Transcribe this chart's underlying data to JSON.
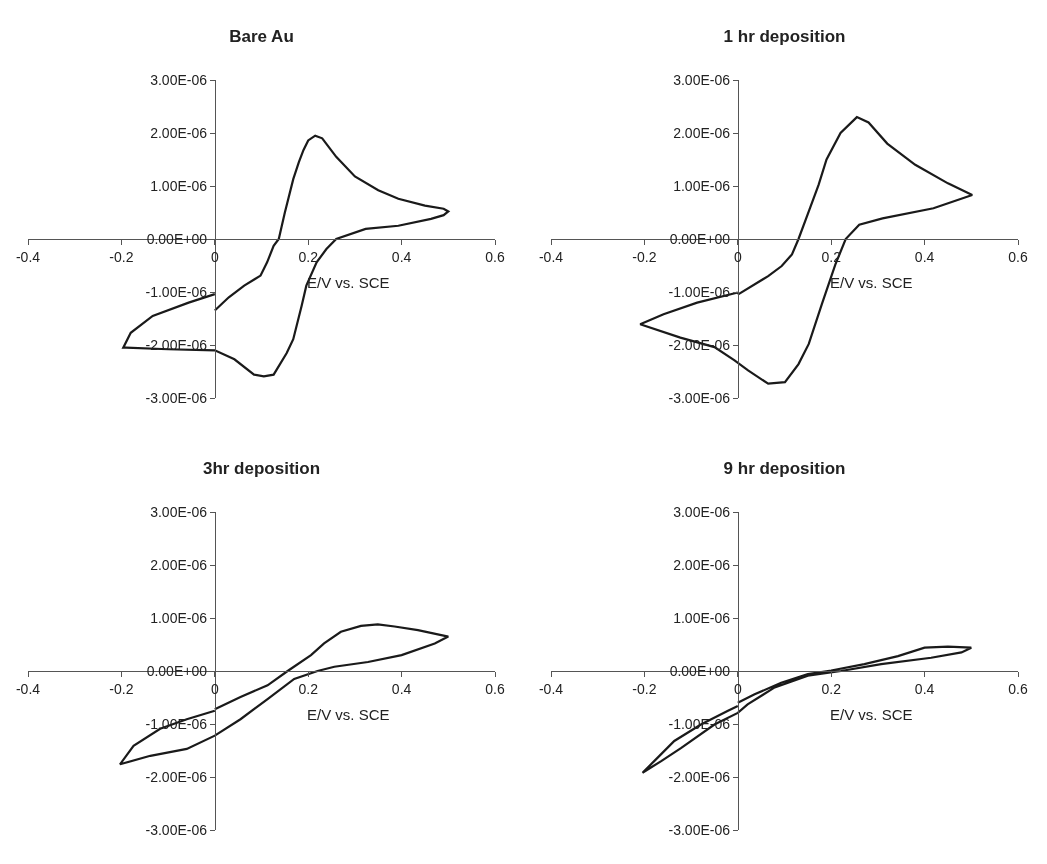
{
  "chart_data": [
    {
      "type": "line",
      "title": "Bare Au",
      "xlabel": "E/V vs. SCE",
      "color": "#1a1a1a",
      "xlim": [
        -0.4,
        0.6
      ],
      "xticks": [
        -0.4,
        -0.2,
        0,
        0.2,
        0.4,
        0.6
      ],
      "ylim": [
        -3e-06,
        3e-06
      ],
      "yticks": [
        {
          "value": -3e-06,
          "label": "-3.00E-06"
        },
        {
          "value": -2e-06,
          "label": "-2.00E-06"
        },
        {
          "value": -1e-06,
          "label": "-1.00E-06"
        },
        {
          "value": 0,
          "label": "0.00E+00"
        },
        {
          "value": 1e-06,
          "label": "1.00E-06"
        },
        {
          "value": 2e-06,
          "label": "2.00E-06"
        },
        {
          "value": 3e-06,
          "label": "3.00E-06"
        }
      ],
      "x": [
        0,
        0.03,
        0.063,
        0.098,
        0.112,
        0.126,
        0.137,
        0.15,
        0.168,
        0.18,
        0.19,
        0.2,
        0.215,
        0.23,
        0.26,
        0.3,
        0.35,
        0.393,
        0.45,
        0.49,
        0.5,
        0.49,
        0.463,
        0.393,
        0.323,
        0.26,
        0.239,
        0.218,
        0.196,
        0.186,
        0.168,
        0.154,
        0.126,
        0.105,
        0.084,
        0.042,
        0,
        -0.1,
        -0.19,
        -0.196,
        -0.18,
        -0.133,
        -0.056,
        0
      ],
      "values": [
        -1.35e-06,
        -1.1e-06,
        -8.8e-07,
        -6.9e-07,
        -4.4e-07,
        -1.3e-07,
        0,
        5e-07,
        1.13e-06,
        1.45e-06,
        1.68e-06,
        1.86e-06,
        1.95e-06,
        1.9e-06,
        1.55e-06,
        1.18e-06,
        9.2e-07,
        7.6e-07,
        6.3e-07,
        5.7e-07,
        5.2e-07,
        4.5e-07,
        3.8e-07,
        2.5e-07,
        1.9e-07,
        0,
        -1.9e-07,
        -4.4e-07,
        -8.8e-07,
        -1.26e-06,
        -1.89e-06,
        -2.15e-06,
        -2.56e-06,
        -2.59e-06,
        -2.56e-06,
        -2.27e-06,
        -2.1e-06,
        -2.08e-06,
        -2.05e-06,
        -2.05e-06,
        -1.77e-06,
        -1.45e-06,
        -1.2e-06,
        -1.04e-06
      ]
    },
    {
      "type": "line",
      "title": "1 hr deposition",
      "xlabel": "E/V vs. SCE",
      "color": "#1a1a1a",
      "xlim": [
        -0.4,
        0.6
      ],
      "xticks": [
        -0.4,
        -0.2,
        0,
        0.2,
        0.4,
        0.6
      ],
      "ylim": [
        -3e-06,
        3e-06
      ],
      "yticks": [
        {
          "value": -3e-06,
          "label": "-3.00E-06"
        },
        {
          "value": -2e-06,
          "label": "-2.00E-06"
        },
        {
          "value": -1e-06,
          "label": "-1.00E-06"
        },
        {
          "value": 0,
          "label": "0.00E+00"
        },
        {
          "value": 1e-06,
          "label": "1.00E-06"
        },
        {
          "value": 2e-06,
          "label": "2.00E-06"
        },
        {
          "value": 3e-06,
          "label": "3.00E-06"
        }
      ],
      "x": [
        0,
        0.065,
        0.094,
        0.116,
        0.13,
        0.152,
        0.173,
        0.19,
        0.22,
        0.255,
        0.28,
        0.32,
        0.38,
        0.45,
        0.502,
        0.419,
        0.31,
        0.26,
        0.231,
        0.209,
        0.18,
        0.152,
        0.13,
        0.101,
        0.065,
        0.022,
        -0.007,
        -0.05,
        -0.123,
        -0.209,
        -0.159,
        -0.087,
        0
      ],
      "values": [
        -1.05e-06,
        -7e-07,
        -5.1e-07,
        -2.9e-07,
        0,
        5.2e-07,
        1.02e-06,
        1.5e-06,
        2e-06,
        2.3e-06,
        2.2e-06,
        1.8e-06,
        1.4e-06,
        1.05e-06,
        8.3e-07,
        5.8e-07,
        3.9e-07,
        2.7e-07,
        0,
        -4.8e-07,
        -1.23e-06,
        -1.98e-06,
        -2.36e-06,
        -2.7e-06,
        -2.73e-06,
        -2.48e-06,
        -2.29e-06,
        -2.04e-06,
        -1.86e-06,
        -1.61e-06,
        -1.42e-06,
        -1.2e-06,
        -1.01e-06
      ]
    },
    {
      "type": "line",
      "title": "3hr deposition",
      "xlabel": "E/V vs. SCE",
      "color": "#1a1a1a",
      "xlim": [
        -0.4,
        0.6
      ],
      "xticks": [
        -0.4,
        -0.2,
        0,
        0.2,
        0.4,
        0.6
      ],
      "ylim": [
        -3e-06,
        3e-06
      ],
      "yticks": [
        {
          "value": -3e-06,
          "label": "-3.00E-06"
        },
        {
          "value": -2e-06,
          "label": "-2.00E-06"
        },
        {
          "value": -1e-06,
          "label": "-1.00E-06"
        },
        {
          "value": 0,
          "label": "0.00E+00"
        },
        {
          "value": 1e-06,
          "label": "1.00E-06"
        },
        {
          "value": 2e-06,
          "label": "2.00E-06"
        },
        {
          "value": 3e-06,
          "label": "3.00E-06"
        }
      ],
      "x": [
        0,
        0.055,
        0.113,
        0.156,
        0.206,
        0.234,
        0.27,
        0.313,
        0.349,
        0.385,
        0.435,
        0.5,
        0.471,
        0.4,
        0.328,
        0.256,
        0.22,
        0.17,
        0.113,
        0.055,
        0,
        -0.06,
        -0.138,
        -0.203,
        -0.174,
        -0.117,
        -0.06,
        0
      ],
      "values": [
        -7.2e-07,
        -4.9e-07,
        -2.7e-07,
        0,
        3e-07,
        5.2e-07,
        7.4e-07,
        8.5e-07,
        8.8e-07,
        8.4e-07,
        7.7e-07,
        6.5e-07,
        5.2e-07,
        3e-07,
        1.7e-07,
        8e-08,
        0,
        -1.5e-07,
        -5.3e-07,
        -9.1e-07,
        -1.22e-06,
        -1.47e-06,
        -1.6e-06,
        -1.76e-06,
        -1.41e-06,
        -1.09e-06,
        -9.1e-07,
        -7.5e-07
      ]
    },
    {
      "type": "line",
      "title": "9 hr deposition",
      "xlabel": "E/V vs. SCE",
      "color": "#1a1a1a",
      "xlim": [
        -0.4,
        0.6
      ],
      "xticks": [
        -0.4,
        -0.2,
        0,
        0.2,
        0.4,
        0.6
      ],
      "ylim": [
        -3e-06,
        3e-06
      ],
      "yticks": [
        {
          "value": -3e-06,
          "label": "-3.00E-06"
        },
        {
          "value": -2e-06,
          "label": "-2.00E-06"
        },
        {
          "value": -1e-06,
          "label": "-1.00E-06"
        },
        {
          "value": 0,
          "label": "0.00E+00"
        },
        {
          "value": 1e-06,
          "label": "1.00E-06"
        },
        {
          "value": 2e-06,
          "label": "2.00E-06"
        },
        {
          "value": 3e-06,
          "label": "3.00E-06"
        }
      ],
      "x": [
        0,
        0.036,
        0.093,
        0.15,
        0.2,
        0.271,
        0.343,
        0.4,
        0.45,
        0.5,
        0.479,
        0.414,
        0.307,
        0.221,
        0.15,
        0.079,
        0.021,
        0,
        -0.05,
        -0.121,
        -0.164,
        -0.204,
        -0.179,
        -0.136,
        -0.079,
        -0.021,
        0
      ],
      "values": [
        -6e-07,
        -4.4e-07,
        -2.2e-07,
        -6e-08,
        1e-08,
        1.3e-07,
        2.8e-07,
        4.4e-07,
        4.6e-07,
        4.4e-07,
        3.5e-07,
        2.5e-07,
        1.3e-07,
        0,
        -9e-08,
        -3.1e-07,
        -6.3e-07,
        -7.9e-07,
        -1.01e-06,
        -1.45e-06,
        -1.7e-06,
        -1.92e-06,
        -1.7e-06,
        -1.32e-06,
        -1.01e-06,
        -7.5e-07,
        -6.6e-07
      ]
    }
  ]
}
